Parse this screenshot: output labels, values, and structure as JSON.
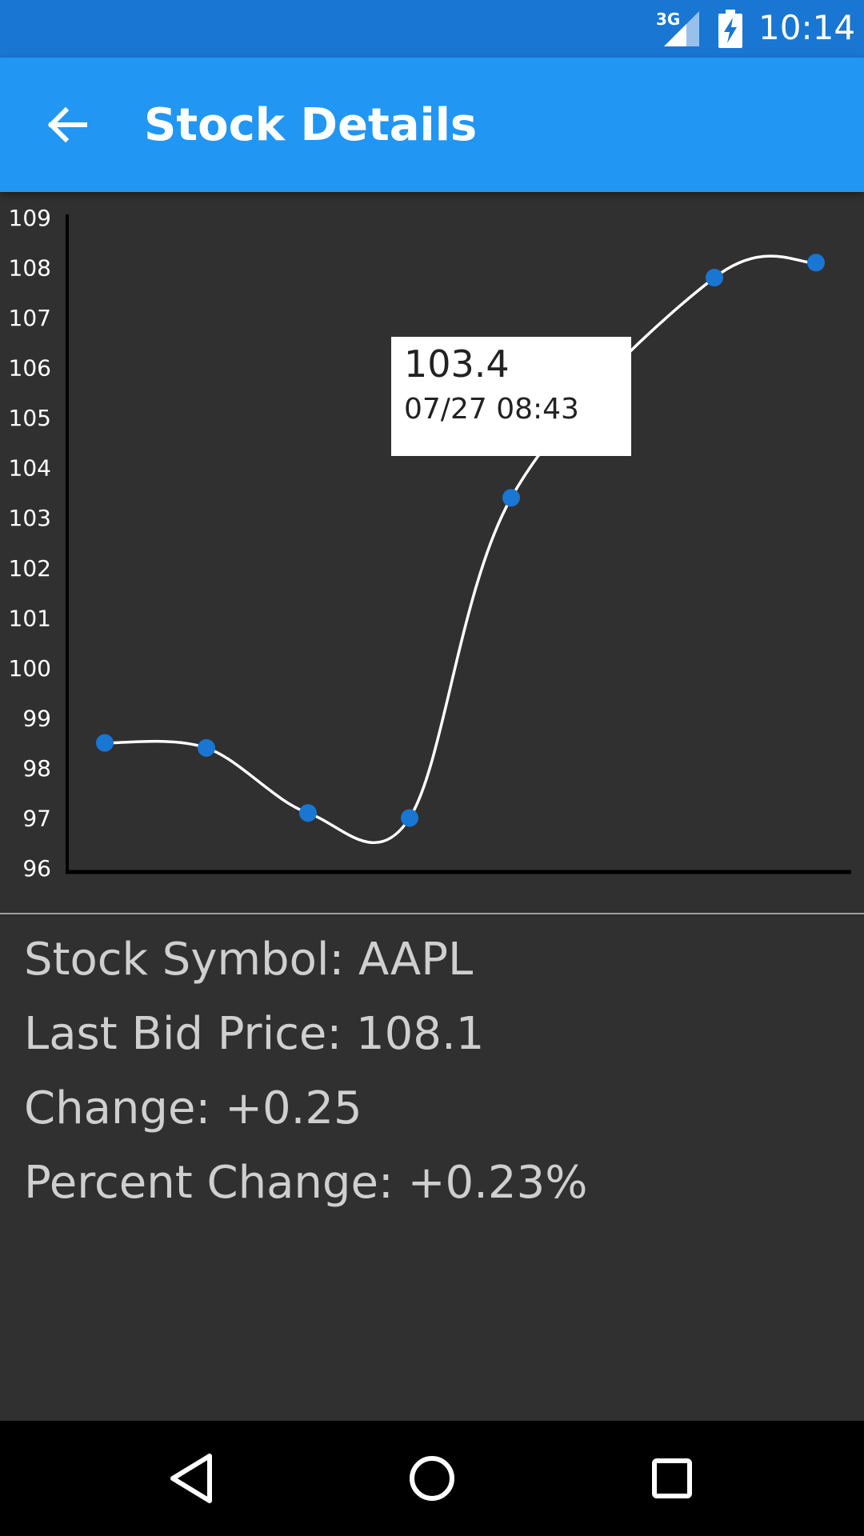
{
  "status_bar": {
    "network": "3G",
    "time": "10:14",
    "icons": [
      "signal-icon",
      "battery-charging-icon"
    ]
  },
  "app_bar": {
    "title": "Stock Details",
    "back_icon": "arrow-left-icon"
  },
  "chart_data": {
    "type": "line",
    "smooth": true,
    "x": [
      "point-1",
      "point-2",
      "point-3",
      "point-4",
      "point-5",
      "point-6",
      "point-7",
      "point-8"
    ],
    "values": [
      98.5,
      98.4,
      97.1,
      97.0,
      103.4,
      null,
      107.8,
      108.1
    ],
    "ylim": [
      96,
      109
    ],
    "yticks": [
      96,
      97,
      98,
      99,
      100,
      101,
      102,
      103,
      104,
      105,
      106,
      107,
      108,
      109
    ],
    "grid": false,
    "colors": {
      "line": "#ffffff",
      "point": "#1976D2",
      "axis": "#000000"
    },
    "tooltip": {
      "value": "103.4",
      "time": "07/27 08:43"
    }
  },
  "details": {
    "symbol": "Stock Symbol: AAPL",
    "last_bid": "Last Bid Price: 108.1",
    "change": "Change: +0.25",
    "percent_change": "Percent Change: +0.23%"
  },
  "nav_bar": {
    "icons": [
      "back-triangle-icon",
      "home-circle-icon",
      "recents-square-icon"
    ]
  }
}
